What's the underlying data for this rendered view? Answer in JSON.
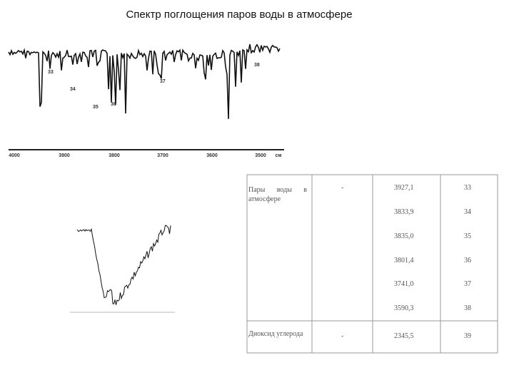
{
  "header": {
    "title": "Спектр поглощения паров воды в атмосфере"
  },
  "spectrum": {
    "x_ticks": [
      "4000",
      "3900",
      "3800",
      "3700",
      "3600",
      "3500"
    ],
    "unit": "см",
    "peaks": [
      "33",
      "34",
      "35",
      "36",
      "37",
      "38"
    ]
  },
  "table": {
    "groups": [
      {
        "name": "Пары воды в атмосфере",
        "dash": "-",
        "lines": [
          {
            "wavenumber": "3927,1",
            "peak": "33"
          },
          {
            "wavenumber": "3833,9",
            "peak": "34"
          },
          {
            "wavenumber": "3835,0",
            "peak": "35"
          },
          {
            "wavenumber": "3801,4",
            "peak": "36"
          },
          {
            "wavenumber": "3741,0",
            "peak": "37"
          },
          {
            "wavenumber": "3590,3",
            "peak": "38"
          }
        ]
      },
      {
        "name": "Диоксид углерода",
        "dash": "-",
        "lines": [
          {
            "wavenumber": "2345,5",
            "peak": "39"
          }
        ]
      }
    ]
  }
}
